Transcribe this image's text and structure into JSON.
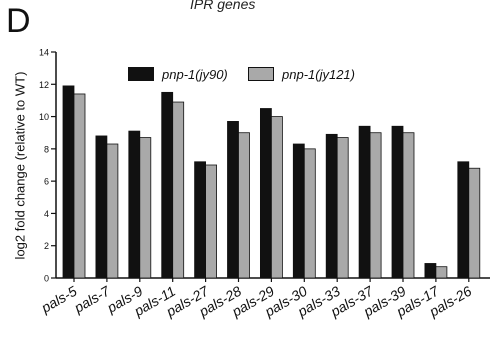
{
  "panel_letter": "D",
  "top_title": "IPR genes",
  "colors": {
    "series1": "#111111",
    "series2": "#a9a9a9",
    "axis": "#111111"
  },
  "chart_data": {
    "type": "bar",
    "title": "IPR genes",
    "xlabel": "",
    "ylabel": "log2 fold change (relative to WT)",
    "ylim": [
      0,
      14
    ],
    "yticks": [
      0,
      2,
      4,
      6,
      8,
      10,
      12,
      14
    ],
    "grid": false,
    "legend_position": "top-center",
    "categories": [
      "pals-5",
      "pals-7",
      "pals-9",
      "pals-11",
      "pals-27",
      "pals-28",
      "pals-29",
      "pals-30",
      "pals-33",
      "pals-37",
      "pals-39",
      "pals-17",
      "pals-26"
    ],
    "series": [
      {
        "name": "pnp-1(jy90)",
        "color": "#111111",
        "values": [
          11.9,
          8.8,
          9.1,
          11.5,
          7.2,
          9.7,
          10.5,
          8.3,
          8.9,
          9.4,
          9.4,
          0.9,
          7.2
        ]
      },
      {
        "name": "pnp-1(jy121)",
        "color": "#a9a9a9",
        "values": [
          11.4,
          8.3,
          8.7,
          10.9,
          7.0,
          9.0,
          10.0,
          8.0,
          8.7,
          9.0,
          9.0,
          0.7,
          6.8
        ]
      }
    ]
  }
}
